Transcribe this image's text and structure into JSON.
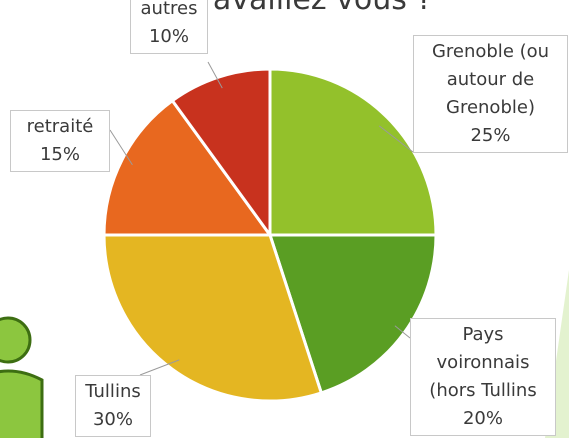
{
  "chart_data": {
    "type": "pie",
    "title": "Où travaillez vous ?",
    "categories": [
      "Grenoble (ou autour de Grenoble)",
      "Pays voironnais (hors Tullins",
      "Tullins",
      "retraité",
      "autres"
    ],
    "values": [
      25,
      20,
      30,
      15,
      10
    ],
    "value_labels": [
      "25%",
      "20%",
      "30%",
      "15%",
      "10%"
    ],
    "colors": [
      "#93c12b",
      "#5a9e23",
      "#e4b622",
      "#e8681f",
      "#c8321e"
    ]
  }
}
